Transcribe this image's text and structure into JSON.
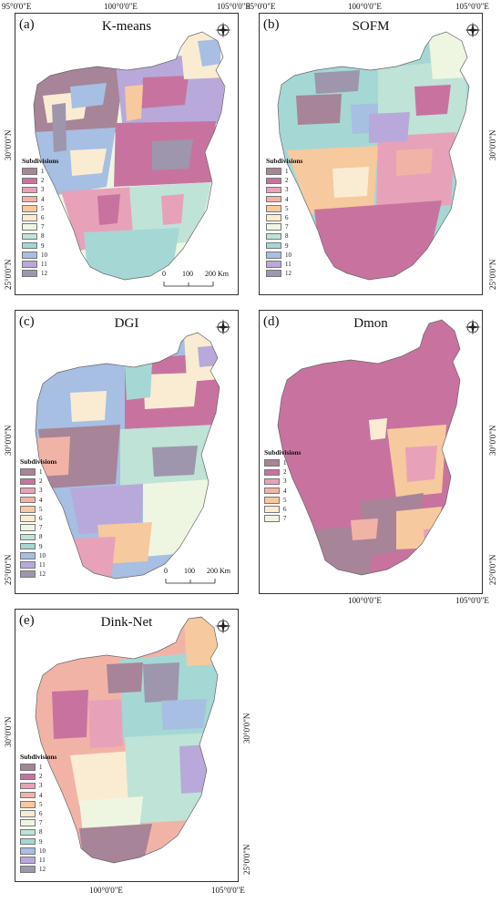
{
  "figure": {
    "coords": {
      "lon_95": "95°0'0\"E",
      "lon_100": "100°0'0\"E",
      "lon_105": "105°0'0\"E",
      "lat_30": "30°0'0\"N",
      "lat_25": "25°0'0\"N"
    },
    "legend_title": "Subdivisions",
    "scale_bar": {
      "labels": [
        "0",
        "100",
        "200 Km"
      ]
    },
    "panels": [
      {
        "label": "(a)",
        "title": "K-means",
        "classes": 12
      },
      {
        "label": "(b)",
        "title": "SOFM",
        "classes": 12
      },
      {
        "label": "(c)",
        "title": "DGI",
        "classes": 12
      },
      {
        "label": "(d)",
        "title": "Dmon",
        "classes": 7
      },
      {
        "label": "(e)",
        "title": "Dink-Net",
        "classes": 12
      }
    ],
    "class_labels": [
      "1",
      "2",
      "3",
      "4",
      "5",
      "6",
      "7",
      "8",
      "9",
      "10",
      "11",
      "12"
    ],
    "class_colors": [
      "#a78497",
      "#c8739f",
      "#e7a2b9",
      "#f2b3a7",
      "#f7c99e",
      "#faecd2",
      "#eef6e1",
      "#bfe3d6",
      "#a5d7d5",
      "#a6bfe2",
      "#b8a9da",
      "#9e96ad"
    ],
    "compass_letters": {
      "n": "N",
      "s": "S",
      "e": "E",
      "w": "W"
    }
  }
}
